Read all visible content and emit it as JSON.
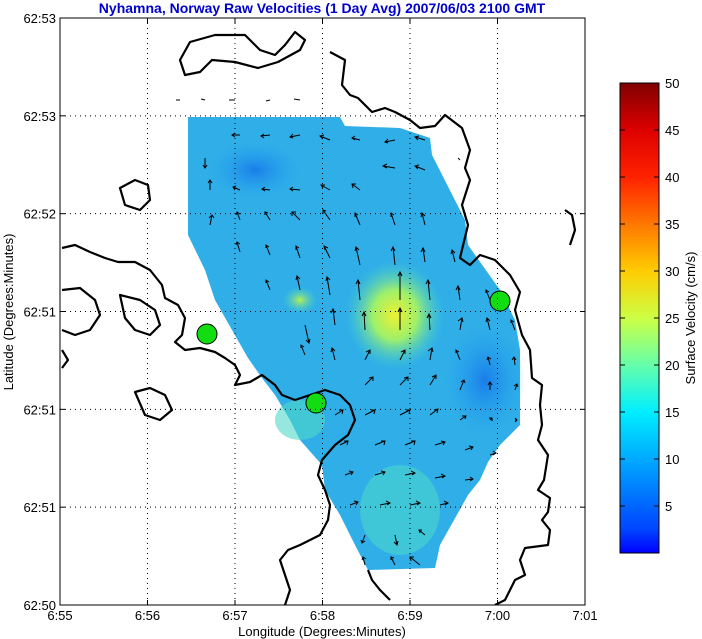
{
  "chart_data": {
    "type": "heatmap",
    "title": "Nyhamna, Norway Raw Velocities (1 Day Avg) 2007/06/03 2100 GMT",
    "xlabel": "Longitude (Degrees:Minutes)",
    "ylabel": "Latitude (Degrees:Minutes)",
    "x_ticks": [
      "6:55",
      "6:56",
      "6:57",
      "6:58",
      "6:59",
      "7:00",
      "7:01"
    ],
    "y_ticks": [
      "62:53",
      "62:53",
      "62:52",
      "62:51",
      "62:51",
      "62:51",
      "62:50"
    ],
    "grid": true,
    "colorbar": {
      "label": "Surface Velocity (cm/s)",
      "ticks": [
        "5",
        "10",
        "15",
        "20",
        "25",
        "30",
        "35",
        "40",
        "45",
        "50"
      ],
      "range": [
        0,
        50
      ],
      "colormap": "jet"
    },
    "stations": [
      {
        "lon_min": 1.7,
        "lat_idx": 2.7
      },
      {
        "lon_min": 2.9,
        "lat_idx": 2.0
      },
      {
        "lon_min": 5.0,
        "lat_idx": 3.1
      }
    ],
    "colors": {
      "title": "#0000cc",
      "station": "#11dd11",
      "coast": "#000000"
    }
  }
}
